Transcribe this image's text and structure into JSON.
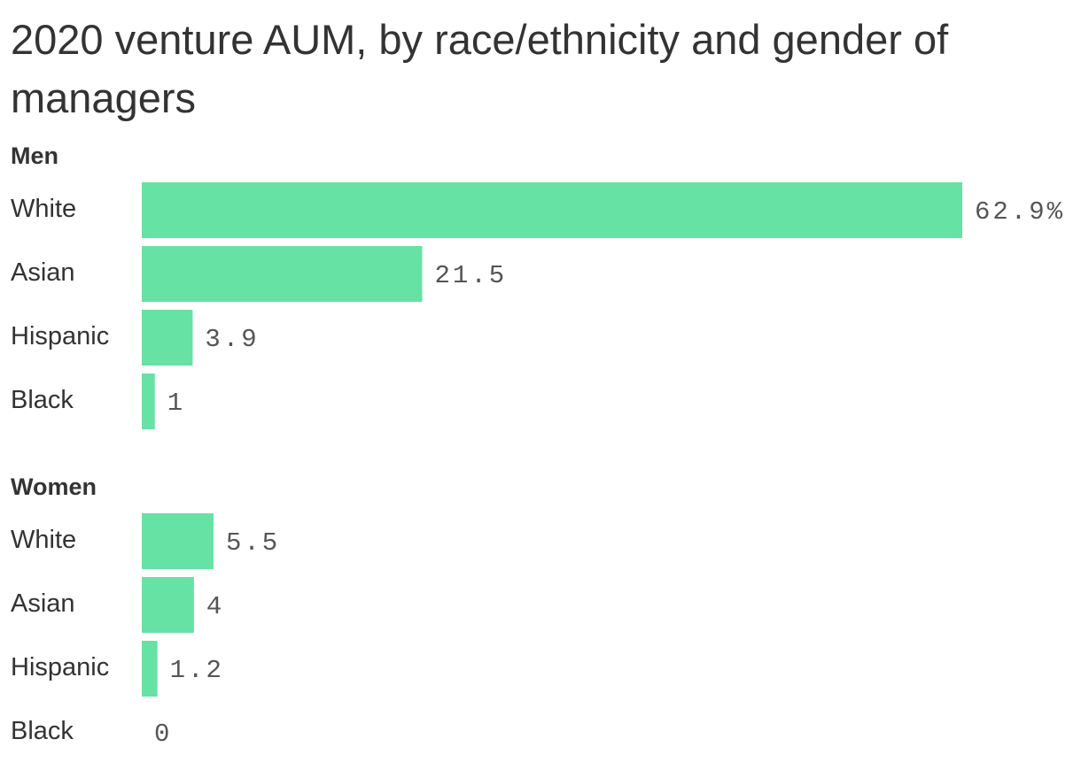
{
  "chart_data": {
    "type": "bar",
    "orientation": "horizontal",
    "title": "2020 venture AUM, by race/ethnicity and gender of managers",
    "color": "#66e2a4",
    "categories": [
      "White",
      "Asian",
      "Hispanic",
      "Black"
    ],
    "series": [
      {
        "name": "Men",
        "values": [
          62.9,
          21.5,
          3.9,
          1
        ],
        "value_labels": [
          "62.9%",
          "21.5",
          "3.9",
          "1"
        ]
      },
      {
        "name": "Women",
        "values": [
          5.5,
          4,
          1.2,
          0
        ]
      }
    ]
  }
}
